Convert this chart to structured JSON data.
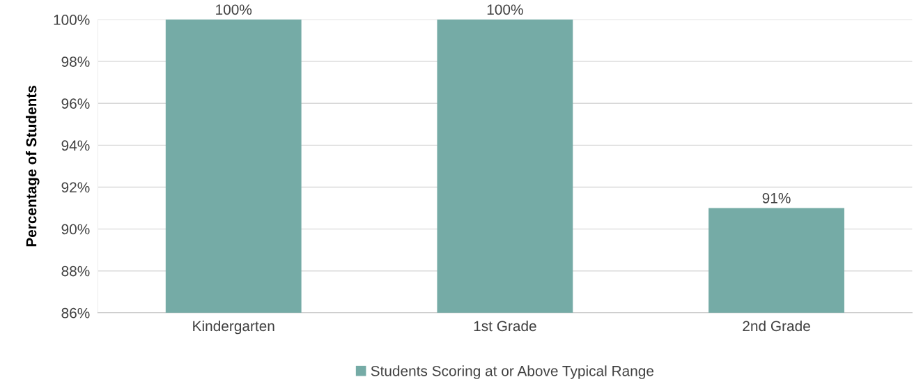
{
  "chart_data": {
    "type": "bar",
    "ylabel": "Percentage of Students",
    "categories": [
      "Kindergarten",
      "1st Grade",
      "2nd Grade"
    ],
    "series": [
      {
        "name": "Students Scoring at or Above Typical Range",
        "color": "#75aba6",
        "values": [
          100,
          100,
          91
        ],
        "value_labels": [
          "100%",
          "100%",
          "91%"
        ]
      }
    ],
    "ylim": [
      86,
      100
    ],
    "yticks": [
      {
        "value": 86,
        "label": "86%"
      },
      {
        "value": 88,
        "label": "88%"
      },
      {
        "value": 90,
        "label": "90%"
      },
      {
        "value": 92,
        "label": "92%"
      },
      {
        "value": 94,
        "label": "94%"
      },
      {
        "value": 96,
        "label": "96%"
      },
      {
        "value": 98,
        "label": "98%"
      },
      {
        "value": 100,
        "label": "100%"
      }
    ],
    "grid": "y",
    "legend": "bottom"
  }
}
